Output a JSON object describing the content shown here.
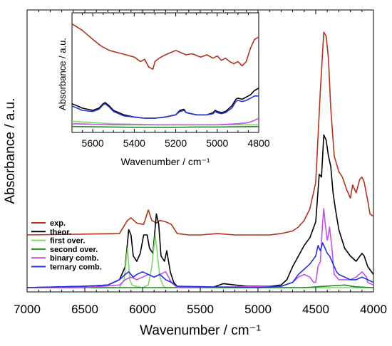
{
  "chart_data": [
    {
      "type": "line",
      "role": "main",
      "xlabel": "Wavenumber / cm⁻¹",
      "ylabel": "Absorbance / a.u.",
      "xlim": [
        7000,
        4000
      ],
      "x_reversed": true,
      "yticks_labeled": false,
      "xticks": [
        "7000",
        "6500",
        "6000",
        "5500",
        "5000",
        "4500",
        "4000"
      ],
      "grid": false,
      "legend_position": "lower-left",
      "series": [
        {
          "name": "exp.",
          "color": "#b0341c",
          "x": [
            7000,
            6200,
            6130,
            6100,
            6050,
            5990,
            5950,
            5920,
            5880,
            5850,
            5800,
            5750,
            5700,
            5600,
            5500,
            5350,
            5200,
            5100,
            5000,
            4900,
            4800,
            4700,
            4650,
            4600,
            4550,
            4500,
            4460,
            4430,
            4410,
            4390,
            4370,
            4340,
            4300,
            4270,
            4230,
            4200,
            4180,
            4150,
            4120,
            4100,
            4080,
            4050,
            4030,
            4000
          ],
          "y": [
            0.2,
            0.205,
            0.255,
            0.265,
            0.245,
            0.24,
            0.295,
            0.255,
            0.245,
            0.255,
            0.25,
            0.24,
            0.205,
            0.2,
            0.2,
            0.205,
            0.2,
            0.2,
            0.2,
            0.2,
            0.205,
            0.215,
            0.23,
            0.255,
            0.3,
            0.4,
            0.75,
            0.97,
            0.955,
            0.87,
            0.68,
            0.5,
            0.44,
            0.42,
            0.37,
            0.34,
            0.39,
            0.36,
            0.41,
            0.42,
            0.4,
            0.33,
            0.28,
            0.27
          ]
        },
        {
          "name": "theor.",
          "color": "#000000",
          "x": [
            7000,
            6500,
            6300,
            6200,
            6150,
            6120,
            6100,
            6080,
            6050,
            6020,
            5990,
            5960,
            5940,
            5910,
            5880,
            5860,
            5840,
            5810,
            5790,
            5760,
            5730,
            5700,
            5600,
            5400,
            5300,
            5200,
            5100,
            4900,
            4800,
            4750,
            4700,
            4650,
            4600,
            4550,
            4500,
            4470,
            4450,
            4430,
            4410,
            4390,
            4370,
            4350,
            4330,
            4300,
            4250,
            4200,
            4150,
            4100,
            4080,
            4050,
            4000
          ],
          "y": [
            0.0,
            0.005,
            0.01,
            0.03,
            0.08,
            0.22,
            0.2,
            0.12,
            0.1,
            0.13,
            0.2,
            0.2,
            0.15,
            0.13,
            0.28,
            0.24,
            0.12,
            0.1,
            0.14,
            0.06,
            0.02,
            0.005,
            0.0,
            0.0,
            0.015,
            0.01,
            0.005,
            0.005,
            0.01,
            0.03,
            0.08,
            0.12,
            0.16,
            0.19,
            0.25,
            0.43,
            0.42,
            0.58,
            0.56,
            0.5,
            0.46,
            0.36,
            0.3,
            0.22,
            0.15,
            0.12,
            0.1,
            0.13,
            0.12,
            0.08,
            0.05
          ]
        },
        {
          "name": "first over.",
          "color": "#7fd66c",
          "x": [
            7000,
            6200,
            6160,
            6130,
            6110,
            6090,
            6060,
            6000,
            5950,
            5920,
            5890,
            5870,
            5850,
            5820,
            5800,
            5700,
            4000
          ],
          "y": [
            0.0,
            0.0,
            0.03,
            0.15,
            0.03,
            0.01,
            0.005,
            0.0,
            0.01,
            0.08,
            0.2,
            0.12,
            0.04,
            0.005,
            0.0,
            0.0,
            0.0
          ]
        },
        {
          "name": "second over.",
          "color": "#1f8a1f",
          "x": [
            7000,
            4800,
            4600,
            4500,
            4400,
            4300,
            4250,
            4200,
            4150,
            4000
          ],
          "y": [
            0.0,
            0.0,
            0.0,
            0.003,
            0.006,
            0.008,
            0.01,
            0.006,
            0.003,
            0.0
          ]
        },
        {
          "name": "binary comb.",
          "color": "#c050e8",
          "x": [
            7000,
            6500,
            6200,
            6150,
            6100,
            6050,
            6000,
            5950,
            5900,
            5850,
            5800,
            5750,
            5700,
            4800,
            4700,
            4650,
            4600,
            4550,
            4520,
            4500,
            4480,
            4460,
            4440,
            4430,
            4420,
            4400,
            4390,
            4380,
            4360,
            4350,
            4340,
            4320,
            4300,
            4250,
            4200,
            4150,
            4100,
            4080,
            4060,
            4050,
            4000
          ],
          "y": [
            0.0,
            0.0,
            0.01,
            0.03,
            0.04,
            0.03,
            0.04,
            0.05,
            0.04,
            0.05,
            0.06,
            0.02,
            0.0,
            0.005,
            0.02,
            0.04,
            0.05,
            0.04,
            0.02,
            0.02,
            0.08,
            0.1,
            0.25,
            0.3,
            0.25,
            0.18,
            0.2,
            0.23,
            0.15,
            0.1,
            0.05,
            0.04,
            0.03,
            0.03,
            0.03,
            0.04,
            0.06,
            0.05,
            0.04,
            0.02,
            0.01
          ]
        },
        {
          "name": "ternary comb.",
          "color": "#2233dd",
          "x": [
            7000,
            6500,
            6300,
            6200,
            6150,
            6120,
            6080,
            6050,
            6000,
            5950,
            5900,
            5850,
            5800,
            5750,
            5700,
            5000,
            4800,
            4700,
            4650,
            4600,
            4550,
            4500,
            4480,
            4460,
            4440,
            4420,
            4400,
            4380,
            4360,
            4340,
            4320,
            4300,
            4250,
            4200,
            4150,
            4100,
            4050,
            4000
          ],
          "y": [
            0.0,
            0.005,
            0.01,
            0.03,
            0.05,
            0.06,
            0.04,
            0.05,
            0.06,
            0.05,
            0.04,
            0.05,
            0.03,
            0.02,
            0.005,
            0.0,
            0.005,
            0.02,
            0.05,
            0.07,
            0.09,
            0.12,
            0.16,
            0.14,
            0.17,
            0.15,
            0.13,
            0.12,
            0.1,
            0.08,
            0.06,
            0.05,
            0.04,
            0.03,
            0.03,
            0.04,
            0.03,
            0.02
          ]
        }
      ]
    },
    {
      "type": "line",
      "role": "inset",
      "xlabel": "Wavenumber / cm⁻¹",
      "ylabel": "Absorbance / a.u.",
      "xlim": [
        5700,
        4800
      ],
      "x_reversed": true,
      "yticks_labeled": false,
      "xticks": [
        "5600",
        "5400",
        "5200",
        "5000",
        "4800"
      ],
      "grid": false,
      "series": [
        {
          "color": "#b0341c",
          "x": [
            5700,
            5650,
            5600,
            5560,
            5520,
            5480,
            5440,
            5400,
            5370,
            5350,
            5330,
            5310,
            5300,
            5280,
            5250,
            5200,
            5150,
            5120,
            5080,
            5050,
            5020,
            5000,
            4980,
            4960,
            4940,
            4920,
            4900,
            4880,
            4860,
            4840,
            4820,
            4800
          ],
          "y": [
            0.94,
            0.88,
            0.8,
            0.74,
            0.7,
            0.68,
            0.66,
            0.64,
            0.6,
            0.62,
            0.55,
            0.53,
            0.6,
            0.63,
            0.66,
            0.7,
            0.66,
            0.67,
            0.64,
            0.66,
            0.63,
            0.65,
            0.61,
            0.63,
            0.6,
            0.58,
            0.6,
            0.56,
            0.6,
            0.72,
            0.8,
            0.82
          ]
        },
        {
          "color": "#000000",
          "x": [
            5700,
            5650,
            5600,
            5570,
            5550,
            5540,
            5520,
            5500,
            5450,
            5400,
            5350,
            5300,
            5250,
            5200,
            5180,
            5160,
            5150,
            5100,
            5050,
            5020,
            5010,
            5000,
            4980,
            4960,
            4930,
            4910,
            4900,
            4880,
            4860,
            4840,
            4820,
            4800
          ],
          "y": [
            0.22,
            0.18,
            0.16,
            0.18,
            0.22,
            0.23,
            0.2,
            0.16,
            0.12,
            0.1,
            0.09,
            0.09,
            0.1,
            0.12,
            0.16,
            0.17,
            0.14,
            0.12,
            0.12,
            0.14,
            0.16,
            0.15,
            0.14,
            0.15,
            0.2,
            0.26,
            0.27,
            0.26,
            0.28,
            0.3,
            0.34,
            0.36
          ]
        },
        {
          "color": "#2233dd",
          "x": [
            5700,
            5650,
            5600,
            5570,
            5550,
            5540,
            5520,
            5500,
            5450,
            5400,
            5350,
            5300,
            5250,
            5200,
            5180,
            5160,
            5150,
            5100,
            5050,
            5020,
            5010,
            5000,
            4980,
            4960,
            4930,
            4910,
            4900,
            4880,
            4860,
            4840,
            4820,
            4800
          ],
          "y": [
            0.2,
            0.16,
            0.15,
            0.17,
            0.21,
            0.22,
            0.19,
            0.15,
            0.11,
            0.1,
            0.09,
            0.09,
            0.1,
            0.12,
            0.15,
            0.16,
            0.14,
            0.12,
            0.12,
            0.13,
            0.15,
            0.14,
            0.13,
            0.14,
            0.18,
            0.24,
            0.25,
            0.24,
            0.25,
            0.27,
            0.29,
            0.29
          ]
        },
        {
          "color": "#7fd66c",
          "x": [
            5700,
            5600,
            5500,
            5400,
            5300,
            5200,
            5100,
            5000,
            4900,
            4800
          ],
          "y": [
            0.06,
            0.05,
            0.04,
            0.035,
            0.03,
            0.03,
            0.03,
            0.03,
            0.03,
            0.03
          ]
        },
        {
          "color": "#c050e8",
          "x": [
            5700,
            5600,
            5500,
            5400,
            5300,
            5200,
            5100,
            5000,
            4950,
            4900,
            4850,
            4820,
            4800
          ],
          "y": [
            0.04,
            0.035,
            0.03,
            0.03,
            0.03,
            0.03,
            0.03,
            0.03,
            0.035,
            0.04,
            0.05,
            0.07,
            0.09
          ]
        },
        {
          "color": "#1f8a1f",
          "x": [
            5700,
            5600,
            5500,
            5400,
            5300,
            5200,
            5100,
            5000,
            4900,
            4800
          ],
          "y": [
            0.015,
            0.012,
            0.01,
            0.008,
            0.008,
            0.008,
            0.01,
            0.01,
            0.012,
            0.014
          ]
        }
      ]
    }
  ]
}
